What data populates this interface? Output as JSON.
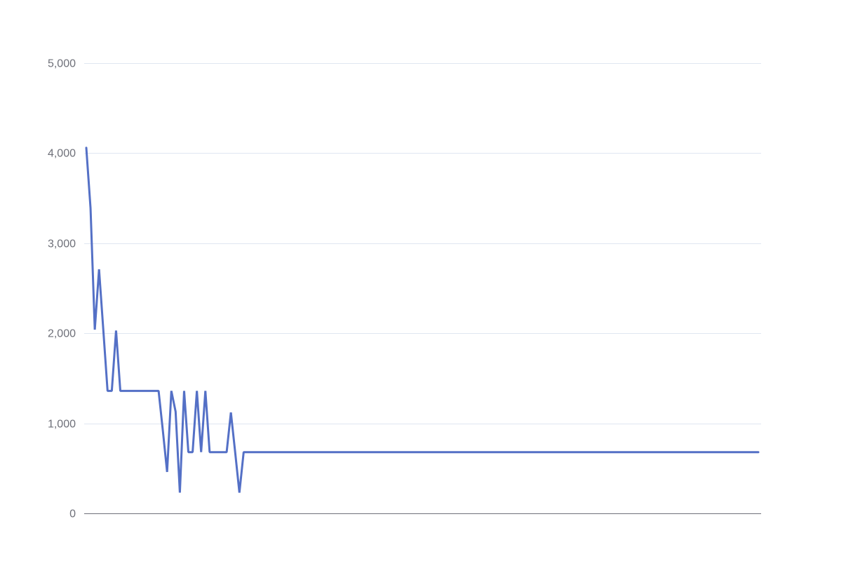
{
  "chart_data": {
    "type": "line",
    "title": "",
    "xlabel": "",
    "ylabel": "",
    "ylim": [
      0,
      5000
    ],
    "yticks": [
      0,
      1000,
      2000,
      3000,
      4000,
      5000
    ],
    "ytick_labels": [
      "0",
      "1,000",
      "2,000",
      "3,000",
      "4,000",
      "5,000"
    ],
    "grid": true,
    "legend": "none",
    "colors": {
      "line": "#5470c6",
      "grid": "#e0e6f1",
      "axis": "#6e7079",
      "tick_text": "#6e7079"
    },
    "series": [
      {
        "values": [
          4060,
          3390,
          2040,
          2710,
          2040,
          1360,
          1360,
          2030,
          1360,
          1360,
          1360,
          1360,
          1360,
          1360,
          1360,
          1360,
          1360,
          1360,
          920,
          460,
          1360,
          1130,
          230,
          1360,
          680,
          680,
          1360,
          680,
          1360,
          680,
          680,
          680,
          680,
          680,
          1120,
          680,
          230,
          680,
          680,
          680,
          680,
          680,
          680,
          680,
          680,
          680,
          680,
          680,
          680,
          680,
          680,
          680,
          680,
          680,
          680,
          680,
          680,
          680,
          680,
          680,
          680,
          680,
          680,
          680,
          680,
          680,
          680,
          680,
          680,
          680,
          680,
          680,
          680,
          680,
          680,
          680,
          680,
          680,
          680,
          680,
          680,
          680,
          680,
          680,
          680,
          680,
          680,
          680,
          680,
          680,
          680,
          680,
          680,
          680,
          680,
          680,
          680,
          680,
          680,
          680,
          680,
          680,
          680,
          680,
          680,
          680,
          680,
          680,
          680,
          680,
          680,
          680,
          680,
          680,
          680,
          680,
          680,
          680,
          680,
          680,
          680,
          680,
          680,
          680,
          680,
          680,
          680,
          680,
          680,
          680,
          680,
          680,
          680,
          680,
          680,
          680,
          680,
          680,
          680,
          680,
          680,
          680,
          680,
          680,
          680,
          680,
          680,
          680,
          680,
          680,
          680,
          680,
          680,
          680,
          680,
          680,
          680,
          680,
          680
        ]
      }
    ]
  }
}
